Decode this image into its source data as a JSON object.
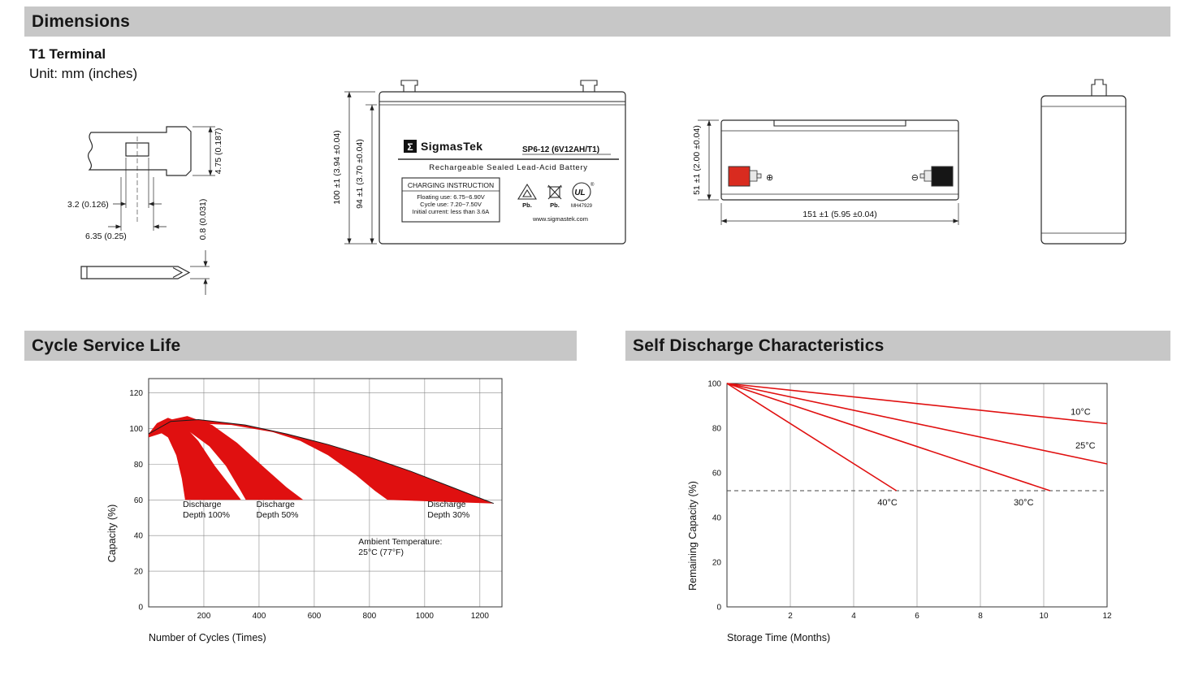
{
  "headers": {
    "dimensions": "Dimensions",
    "cycle_service_life": "Cycle Service Life",
    "self_discharge": "Self Discharge Characteristics"
  },
  "dimensions_section": {
    "terminal_type": "T1 Terminal",
    "unit_note": "Unit: mm (inches)",
    "terminal_drawing": {
      "dim_tab_height": "4.75 (0.187)",
      "dim_slot_width": "3.2 (0.126)",
      "dim_tab_width": "6.35 (0.25)",
      "dim_blade_thickness": "0.8 (0.031)"
    },
    "front_view": {
      "dim_total_height": "100 ±1 (3.94 ±0.04)",
      "dim_case_height": "94 ±1 (3.70 ±0.04)",
      "label": {
        "logo_symbol": "Σ",
        "brand": "SigmasTek",
        "model": "SP6-12 (6V12AH/T1)",
        "battery_type": "Rechargeable Sealed Lead-Acid Battery",
        "charging_title": "CHARGING INSTRUCTION",
        "charging_line1": "Floating use: 6.75~6.90V",
        "charging_line2": "Cycle use: 7.20~7.50V",
        "charging_line3": "Initial current: less than 3.6A",
        "pb_recycle": "Pb.",
        "pb_bin": "Pb.",
        "ul_text": "UL",
        "ul_reg": "®",
        "ul_code": "MH47929",
        "website": "www.sigmastek.com"
      }
    },
    "side_view": {
      "dim_height": "51 ±1 (2.00 ±0.04)",
      "dim_length": "151 ±1 (5.95 ±0.04)",
      "positive_symbol": "⊕",
      "negative_symbol": "⊖",
      "positive_color": "#d92b1f",
      "negative_color": "#161616"
    }
  },
  "chart_data": [
    {
      "type": "area",
      "title": "Cycle Service Life",
      "xlabel": "Number of Cycles (Times)",
      "ylabel": "Capacity (%)",
      "xlim": [
        0,
        1280
      ],
      "ylim": [
        0,
        128
      ],
      "xticks": [
        200,
        400,
        600,
        800,
        1000,
        1200
      ],
      "yticks": [
        0,
        20,
        40,
        60,
        80,
        100,
        120
      ],
      "grid_x": true,
      "grid_y": true,
      "band_color": "#e01010",
      "bands": [
        {
          "name": "discharge-depth-100pct",
          "upper": [
            [
              0,
              97
            ],
            [
              30,
              103
            ],
            [
              70,
              106
            ],
            [
              120,
              103
            ],
            [
              180,
              93
            ],
            [
              240,
              79
            ],
            [
              300,
              67
            ],
            [
              335,
              60
            ]
          ],
          "lower": [
            [
              0,
              95
            ],
            [
              40,
              98
            ],
            [
              70,
              95
            ],
            [
              100,
              85
            ],
            [
              120,
              72
            ],
            [
              132,
              60
            ]
          ]
        },
        {
          "name": "discharge-depth-50pct",
          "upper": [
            [
              0,
              97
            ],
            [
              50,
              104
            ],
            [
              140,
              107
            ],
            [
              230,
              102
            ],
            [
              320,
              92
            ],
            [
              420,
              78
            ],
            [
              500,
              67
            ],
            [
              560,
              60
            ]
          ],
          "lower": [
            [
              0,
              95
            ],
            [
              80,
              99
            ],
            [
              150,
              98
            ],
            [
              220,
              90
            ],
            [
              280,
              79
            ],
            [
              330,
              66
            ],
            [
              352,
              60
            ]
          ]
        },
        {
          "name": "discharge-depth-30pct",
          "upper": [
            [
              0,
              97
            ],
            [
              80,
              104
            ],
            [
              180,
              105
            ],
            [
              350,
              102
            ],
            [
              500,
              97
            ],
            [
              650,
              91
            ],
            [
              800,
              84
            ],
            [
              950,
              76
            ],
            [
              1100,
              67
            ],
            [
              1250,
              58
            ]
          ],
          "lower": [
            [
              0,
              96
            ],
            [
              150,
              103
            ],
            [
              300,
              102
            ],
            [
              450,
              98
            ],
            [
              550,
              93
            ],
            [
              650,
              85
            ],
            [
              750,
              74
            ],
            [
              820,
              65
            ],
            [
              865,
              60
            ]
          ]
        }
      ],
      "envelope": [
        [
          0,
          97
        ],
        [
          80,
          104
        ],
        [
          180,
          105
        ],
        [
          350,
          102
        ],
        [
          500,
          97
        ],
        [
          650,
          91
        ],
        [
          800,
          84
        ],
        [
          950,
          76
        ],
        [
          1100,
          67
        ],
        [
          1250,
          58
        ]
      ],
      "annotations": [
        {
          "lines": [
            "Discharge",
            "Depth 100%"
          ],
          "x": 124,
          "y": 56
        },
        {
          "lines": [
            "Discharge",
            "Depth 50%"
          ],
          "x": 390,
          "y": 56
        },
        {
          "lines": [
            "Discharge",
            "Depth 30%"
          ],
          "x": 1010,
          "y": 56
        },
        {
          "lines": [
            "Ambient Temperature:",
            "25°C (77°F)"
          ],
          "x": 760,
          "y": 35
        }
      ]
    },
    {
      "type": "line",
      "title": "Self Discharge Characteristics",
      "xlabel": "Storage Time (Months)",
      "ylabel": "Remaining Capacity (%)",
      "xlim": [
        0,
        12
      ],
      "ylim": [
        0,
        100
      ],
      "xticks": [
        2,
        4,
        6,
        8,
        10,
        12
      ],
      "yticks": [
        0,
        20,
        40,
        60,
        80,
        100
      ],
      "grid_x": true,
      "grid_y": false,
      "line_color": "#e01010",
      "dashed_line_y": 52,
      "series": [
        {
          "name": "10°C",
          "points": [
            [
              0,
              100
            ],
            [
              12,
              82
            ]
          ],
          "label_at": [
            10.85,
            86
          ]
        },
        {
          "name": "25°C",
          "points": [
            [
              0,
              100
            ],
            [
              12,
              64
            ]
          ],
          "label_at": [
            11.0,
            71
          ]
        },
        {
          "name": "30°C",
          "points": [
            [
              0,
              100
            ],
            [
              10.2,
              52
            ]
          ],
          "label_at": [
            9.05,
            45.5
          ]
        },
        {
          "name": "40°C",
          "points": [
            [
              0,
              100
            ],
            [
              5.35,
              52
            ]
          ],
          "label_at": [
            4.75,
            45.5
          ]
        }
      ]
    }
  ]
}
